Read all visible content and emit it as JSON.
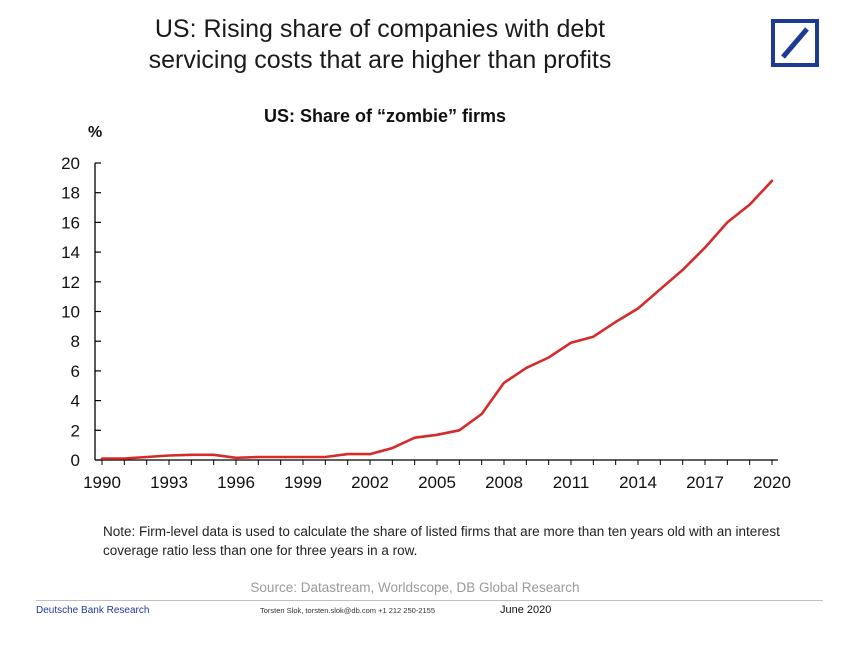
{
  "header": {
    "title_line1": "US: Rising share of companies with debt",
    "title_line2": "servicing costs that are higher than profits"
  },
  "logo": {
    "name": "deutsche-bank-logo",
    "color": "#1f3a93"
  },
  "colors": {
    "line": "#d62b2b",
    "axis": "#000000"
  },
  "chart_data": {
    "type": "line",
    "title": "US: Share of “zombie” firms",
    "ylabel": "%",
    "xlabel": "",
    "ylim": [
      0,
      20
    ],
    "xlim": [
      1990,
      2020
    ],
    "yticks": [
      0,
      2,
      4,
      6,
      8,
      10,
      12,
      14,
      16,
      18,
      20
    ],
    "xticks": [
      1990,
      1993,
      1996,
      1999,
      2002,
      2005,
      2008,
      2011,
      2014,
      2017,
      2020
    ],
    "grid": false,
    "legend": "none",
    "series": [
      {
        "x": [
          1990,
          1991,
          1992,
          1993,
          1994,
          1995,
          1996,
          1997,
          1998,
          1999,
          2000,
          2001,
          2002,
          2003,
          2004,
          2005,
          2006,
          2007,
          2008,
          2009,
          2010,
          2011,
          2012,
          2013,
          2014,
          2015,
          2016,
          2017,
          2018,
          2019,
          2020
        ],
        "values": [
          0.1,
          0.1,
          0.2,
          0.3,
          0.35,
          0.35,
          0.15,
          0.2,
          0.2,
          0.2,
          0.2,
          0.4,
          0.4,
          0.8,
          1.5,
          1.7,
          2.0,
          3.1,
          5.2,
          6.2,
          6.9,
          7.9,
          8.3,
          9.3,
          10.2,
          11.5,
          12.8,
          14.3,
          16.0,
          17.2,
          18.8
        ]
      }
    ]
  },
  "note": "Note: Firm-level data is used to calculate the share of listed firms that are more than ten years old with an interest coverage ratio less than one for three years in a row.",
  "source": "Source: Datastream, Worldscope, DB Global Research",
  "footer": {
    "left": "Deutsche Bank Research",
    "contact": "Torsten Slok, torsten.slok@db.com  +1 212 250-2155",
    "date": "June 2020"
  }
}
